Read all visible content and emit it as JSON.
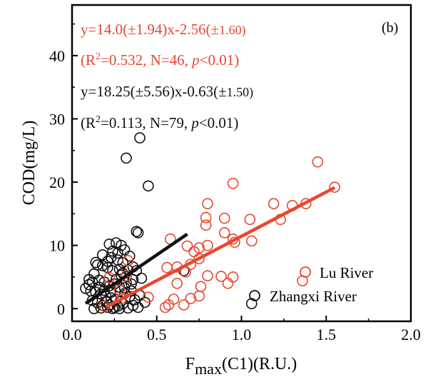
{
  "chart_data": {
    "type": "scatter",
    "panel_label": "(b)",
    "xlabel": {
      "main": "F",
      "sub": "max",
      "rest": "(C1)(R.U.)"
    },
    "ylabel": "COD(mg/L)",
    "xlim": [
      0.0,
      2.0
    ],
    "ylim": [
      -2,
      48
    ],
    "xticks": [
      0.0,
      0.5,
      1.0,
      1.5,
      2.0
    ],
    "xtick_labels": [
      "0.0",
      "0.5",
      "1.0",
      "1.5",
      "2.0"
    ],
    "yticks": [
      0,
      10,
      20,
      30,
      40
    ],
    "ytick_labels": [
      "0",
      "10",
      "20",
      "30",
      "40"
    ],
    "grid": false,
    "legend_position": "bottom-right",
    "colors": {
      "lu": "#e8472f",
      "zhangxi": "#111111"
    },
    "annotations": {
      "lu_eq": {
        "a": "y=14.0(±1.94)x-2.56(±",
        "b": "1.60)"
      },
      "lu_stats": {
        "a": "(R",
        "sup": "2",
        "b": "=0.532, N=46, ",
        "p": "p",
        "c": "<0.01)"
      },
      "zx_eq": {
        "a": "y=18.25(±5.56)x-0.63(±",
        "b": "1.50)"
      },
      "zx_stats": {
        "a": "(R",
        "sup": "2",
        "b": "=0.113, N=79, ",
        "p": "p",
        "c": "<0.01)"
      }
    },
    "series": [
      {
        "name": "Lu River",
        "color": "#e8472f",
        "fit": {
          "x": [
            0.2,
            1.55
          ],
          "y": [
            0.24,
            19.14
          ]
        },
        "points": [
          [
            1.55,
            19.2
          ],
          [
            1.45,
            23.2
          ],
          [
            1.38,
            16.6
          ],
          [
            1.3,
            16.3
          ],
          [
            1.19,
            16.6
          ],
          [
            1.23,
            14.1
          ],
          [
            1.05,
            14.1
          ],
          [
            1.06,
            10.7
          ],
          [
            0.95,
            19.8
          ],
          [
            0.95,
            11.0
          ],
          [
            0.96,
            10.5
          ],
          [
            0.9,
            14.3
          ],
          [
            0.9,
            12.0
          ],
          [
            0.8,
            16.6
          ],
          [
            0.79,
            14.4
          ],
          [
            0.79,
            13.2
          ],
          [
            0.8,
            10.0
          ],
          [
            0.75,
            9.6
          ],
          [
            0.75,
            7.9
          ],
          [
            0.8,
            5.2
          ],
          [
            0.76,
            3.5
          ],
          [
            0.72,
            9.0
          ],
          [
            0.7,
            7.0
          ],
          [
            0.68,
            9.9
          ],
          [
            0.67,
            5.8
          ],
          [
            0.62,
            6.6
          ],
          [
            0.62,
            4.0
          ],
          [
            0.6,
            1.5
          ],
          [
            0.58,
            11.0
          ],
          [
            0.56,
            6.5
          ],
          [
            0.57,
            0.6
          ],
          [
            0.55,
            0.2
          ],
          [
            0.66,
            0.6
          ],
          [
            0.7,
            1.6
          ],
          [
            0.75,
            2.0
          ],
          [
            0.95,
            5.0
          ],
          [
            0.92,
            4.0
          ],
          [
            0.88,
            5.1
          ],
          [
            0.45,
            1.8
          ],
          [
            0.32,
            5.2
          ],
          [
            0.29,
            1.6
          ],
          [
            0.28,
            2.9
          ],
          [
            0.22,
            4.9
          ],
          [
            0.19,
            0.4
          ],
          [
            0.33,
            7.6
          ],
          [
            1.36,
            4.4
          ]
        ]
      },
      {
        "name": "Zhangxi River",
        "color": "#111111",
        "fit": {
          "x": [
            0.08,
            0.68
          ],
          "y": [
            0.83,
            11.78
          ]
        },
        "points": [
          [
            0.4,
            27.0
          ],
          [
            0.32,
            23.8
          ],
          [
            0.45,
            19.4
          ],
          [
            0.38,
            12.2
          ],
          [
            0.39,
            12.0
          ],
          [
            0.22,
            10.2
          ],
          [
            0.26,
            10.4
          ],
          [
            0.29,
            10.0
          ],
          [
            0.31,
            9.3
          ],
          [
            0.34,
            8.3
          ],
          [
            0.23,
            8.1
          ],
          [
            0.27,
            7.7
          ],
          [
            0.14,
            7.3
          ],
          [
            0.15,
            6.9
          ],
          [
            0.18,
            6.8
          ],
          [
            0.21,
            6.5
          ],
          [
            0.24,
            6.0
          ],
          [
            0.28,
            6.2
          ],
          [
            0.3,
            5.6
          ],
          [
            0.32,
            5.1
          ],
          [
            0.36,
            6.6
          ],
          [
            0.38,
            6.0
          ],
          [
            0.41,
            4.8
          ],
          [
            0.1,
            4.6
          ],
          [
            0.12,
            4.2
          ],
          [
            0.16,
            4.5
          ],
          [
            0.19,
            4.2
          ],
          [
            0.22,
            3.6
          ],
          [
            0.25,
            3.9
          ],
          [
            0.28,
            3.4
          ],
          [
            0.31,
            3.3
          ],
          [
            0.35,
            2.8
          ],
          [
            0.08,
            3.2
          ],
          [
            0.11,
            2.8
          ],
          [
            0.14,
            2.6
          ],
          [
            0.17,
            2.3
          ],
          [
            0.2,
            2.0
          ],
          [
            0.23,
            1.7
          ],
          [
            0.26,
            1.5
          ],
          [
            0.29,
            1.2
          ],
          [
            0.12,
            1.3
          ],
          [
            0.15,
            0.9
          ],
          [
            0.18,
            0.5
          ],
          [
            0.21,
            0.2
          ],
          [
            0.24,
            0.0
          ],
          [
            0.27,
            0.4
          ],
          [
            0.3,
            0.8
          ],
          [
            0.33,
            0.1
          ],
          [
            0.36,
            0.5
          ],
          [
            0.39,
            0.2
          ],
          [
            0.13,
            0.0
          ],
          [
            0.17,
            0.1
          ],
          [
            0.2,
            1.1
          ],
          [
            0.23,
            2.6
          ],
          [
            0.26,
            4.6
          ],
          [
            0.29,
            5.3
          ],
          [
            0.32,
            4.1
          ],
          [
            0.35,
            3.9
          ],
          [
            0.4,
            2.1
          ],
          [
            0.43,
            1.0
          ],
          [
            0.37,
            1.4
          ],
          [
            0.34,
            1.9
          ],
          [
            0.31,
            2.4
          ],
          [
            0.28,
            0.0
          ],
          [
            0.25,
            0.2
          ],
          [
            0.22,
            0.6
          ],
          [
            0.19,
            2.9
          ],
          [
            0.16,
            3.4
          ],
          [
            0.13,
            5.5
          ],
          [
            0.1,
            3.8
          ],
          [
            0.21,
            7.5
          ],
          [
            0.18,
            8.5
          ],
          [
            0.24,
            9.1
          ],
          [
            0.27,
            8.8
          ],
          [
            0.3,
            7.3
          ],
          [
            0.33,
            6.1
          ],
          [
            0.36,
            4.6
          ],
          [
            0.66,
            6.0
          ],
          [
            1.06,
            0.8
          ]
        ]
      }
    ]
  }
}
